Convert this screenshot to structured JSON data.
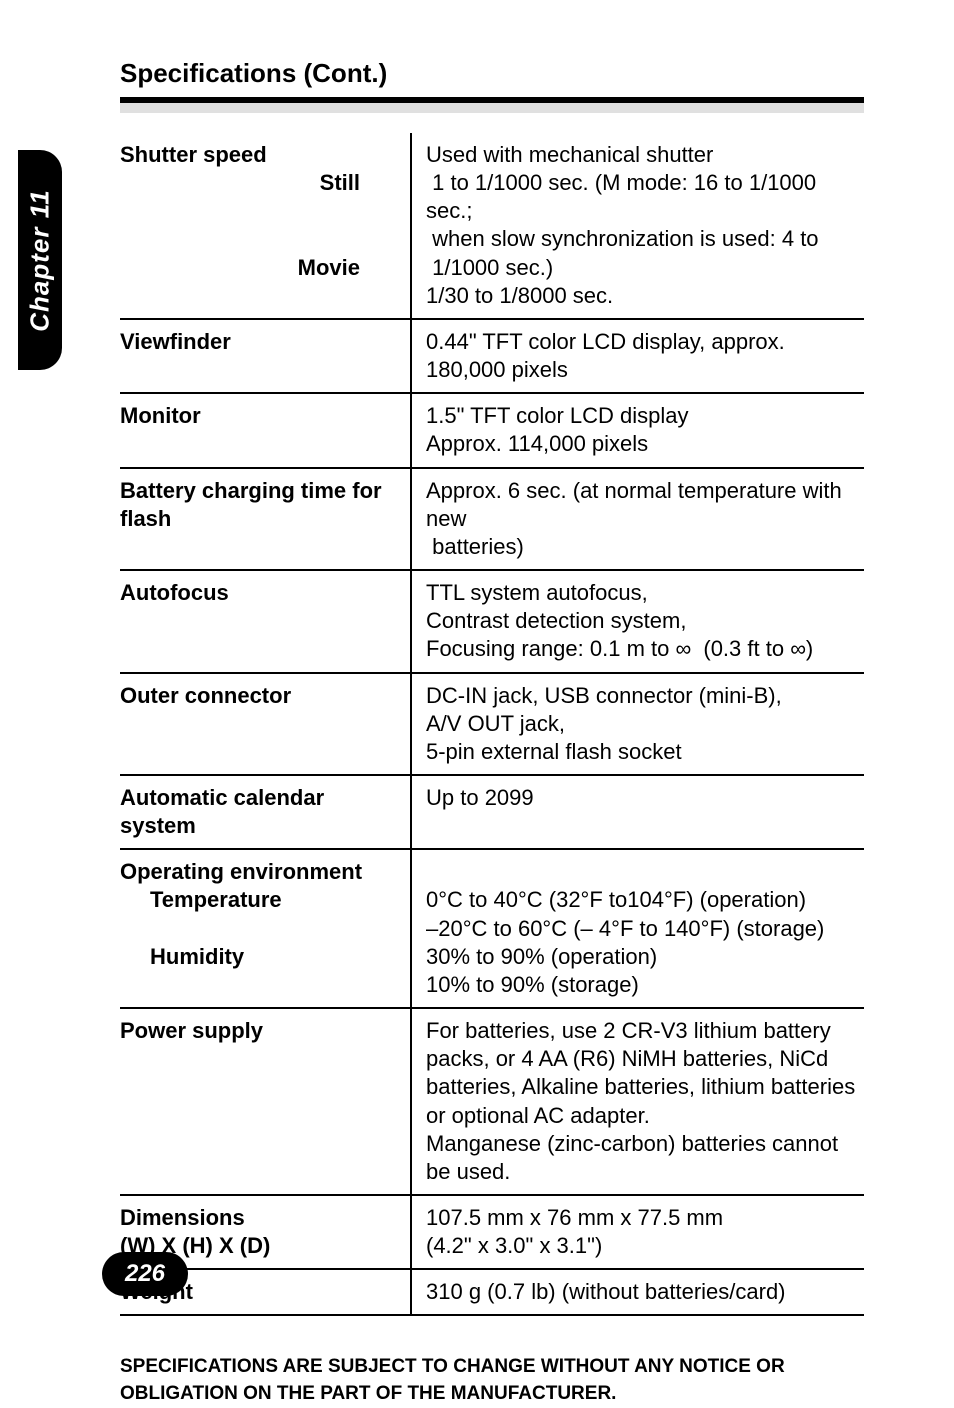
{
  "chapter_tab": "Chapter 11",
  "page_title": "Specifications (Cont.)",
  "footnote": "SPECIFICATIONS ARE SUBJECT TO CHANGE WITHOUT ANY NOTICE OR OBLIGATION ON THE PART OF THE MANUFACTURER.",
  "page_number": "226",
  "rows": [
    {
      "label_html": "Shutter speed<span class=\"indent-right sublabel\">Still</span><span class=\"sublabel\">&nbsp;</span><span class=\"sublabel\">&nbsp;</span><span class=\"indent-right sublabel\">Movie</span>",
      "value_html": "Used with mechanical shutter<br>&nbsp;1 to 1/1000 sec. (M mode: 16 to 1/1000 sec.;<br>&nbsp;when slow synchronization is used: 4 to<br>&nbsp;1/1000 sec.)<br>1/30 to 1/8000 sec."
    },
    {
      "label_html": "Viewfinder",
      "value_html": "0.44\" TFT color LCD display, approx. 180,000 pixels"
    },
    {
      "label_html": "Monitor",
      "value_html": "1.5\" TFT color LCD display<br>Approx. 114,000 pixels"
    },
    {
      "label_html": "Battery charging time for flash",
      "value_html": "Approx. 6 sec. (at normal temperature with new<br>&nbsp;batteries)"
    },
    {
      "label_html": "Autofocus",
      "value_html": "TTL system autofocus,<br>Contrast detection system,<br>Focusing range: 0.1 m to ∞&nbsp;&nbsp;(0.3 ft to ∞)"
    },
    {
      "label_html": "Outer connector",
      "value_html": "DC-IN jack, USB connector (mini-B),<br>A/V OUT jack,<br>5-pin external flash socket"
    },
    {
      "label_html": "Automatic calendar system",
      "value_html": "Up to 2099"
    },
    {
      "label_html": "Operating environment<br><span class=\"indent1\">Temperature</span><span class=\"sublabel\">&nbsp;</span><span class=\"indent1\">Humidity</span>",
      "value_html": "<br>0°C to 40°C (32°F to104°F) (operation)<br>–20°C to 60°C (– 4°F to 140°F) (storage)<br>30% to 90% (operation)<br>10% to 90% (storage)"
    },
    {
      "label_html": "Power supply",
      "value_html": "For batteries, use 2 CR-V3 lithium battery packs, or 4 AA (R6) NiMH batteries, NiCd batteries, Alkaline batteries, lithium batteries or optional AC adapter.<br>Manganese (zinc-carbon) batteries cannot be used."
    },
    {
      "label_html": "Dimensions<br>(W) X (H) X (D)",
      "value_html": "107.5 mm x 76 mm x 77.5 mm<br>(4.2\" x 3.0\" x 3.1\")"
    },
    {
      "label_html": "Weight",
      "value_html": "310 g (0.7 lb) (without batteries/card)"
    }
  ]
}
